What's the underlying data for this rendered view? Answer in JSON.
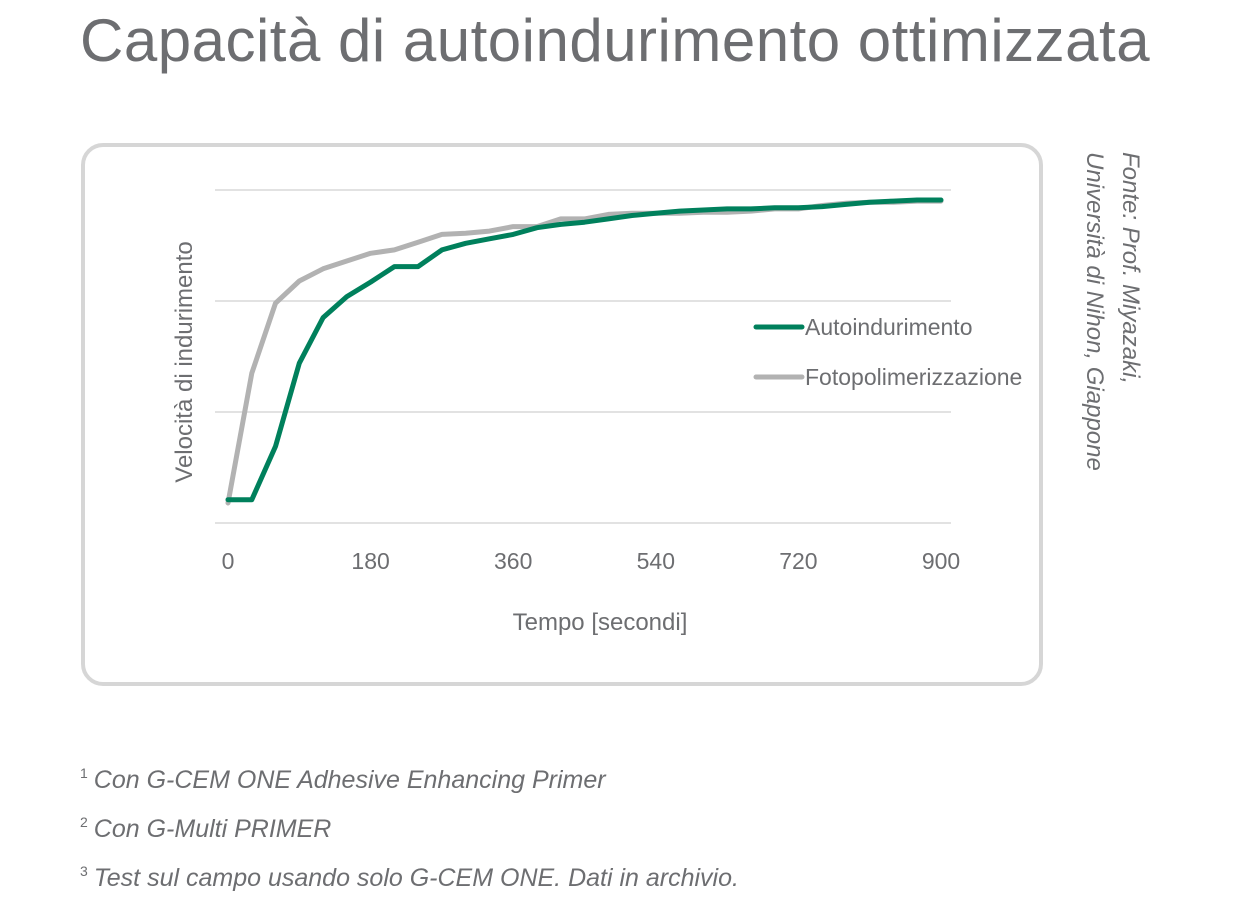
{
  "title": "Capacità di autoindurimento ottimizzata",
  "source": {
    "line1": "Fonte: Prof. Miyazaki,",
    "line2": "Università di Nihon, Giappone"
  },
  "footnotes": [
    {
      "marker": "1",
      "text": "Con G-CEM ONE Adhesive Enhancing Primer"
    },
    {
      "marker": "2",
      "text": "Con G-Multi PRIMER"
    },
    {
      "marker": "3",
      "text": "Test sul campo usando solo G-CEM ONE. Dati in archivio."
    }
  ],
  "colors": {
    "self_cure": "#00805c",
    "light_cure": "#b2b2b2",
    "grid": "#d9d9d9",
    "text": "#6d6e71",
    "frame": "#d6d6d6"
  },
  "chart_data": {
    "type": "line",
    "xlabel": "Tempo [secondi]",
    "ylabel": "Velocità di indurimento",
    "xticks": [
      0,
      180,
      360,
      540,
      720,
      900
    ],
    "xlim": [
      0,
      900
    ],
    "ylim": [
      0,
      3
    ],
    "y_gridlines": [
      0,
      1,
      2,
      3
    ],
    "legend_position": "right",
    "series": [
      {
        "name": "Autoindurimento",
        "color": "#00805c",
        "x": [
          0,
          30,
          60,
          90,
          120,
          150,
          180,
          210,
          240,
          270,
          300,
          330,
          360,
          390,
          420,
          450,
          480,
          510,
          540,
          570,
          600,
          630,
          660,
          690,
          720,
          750,
          780,
          810,
          840,
          870,
          900
        ],
        "y": [
          0.21,
          0.21,
          0.69,
          1.44,
          1.85,
          2.04,
          2.17,
          2.31,
          2.31,
          2.46,
          2.52,
          2.56,
          2.6,
          2.66,
          2.69,
          2.71,
          2.74,
          2.77,
          2.79,
          2.81,
          2.82,
          2.83,
          2.83,
          2.84,
          2.84,
          2.85,
          2.87,
          2.89,
          2.9,
          2.91,
          2.91
        ]
      },
      {
        "name": "Fotopolimerizzazione",
        "color": "#b2b2b2",
        "x": [
          0,
          30,
          60,
          90,
          120,
          150,
          180,
          210,
          240,
          270,
          300,
          330,
          360,
          390,
          420,
          450,
          480,
          510,
          540,
          570,
          600,
          630,
          660,
          690,
          720,
          750,
          780,
          810,
          840,
          870,
          900
        ],
        "y": [
          0.18,
          1.35,
          1.98,
          2.18,
          2.29,
          2.36,
          2.43,
          2.46,
          2.53,
          2.6,
          2.61,
          2.63,
          2.67,
          2.67,
          2.74,
          2.74,
          2.78,
          2.79,
          2.79,
          2.79,
          2.8,
          2.8,
          2.81,
          2.83,
          2.83,
          2.86,
          2.88,
          2.89,
          2.89,
          2.9,
          2.9
        ]
      }
    ]
  }
}
